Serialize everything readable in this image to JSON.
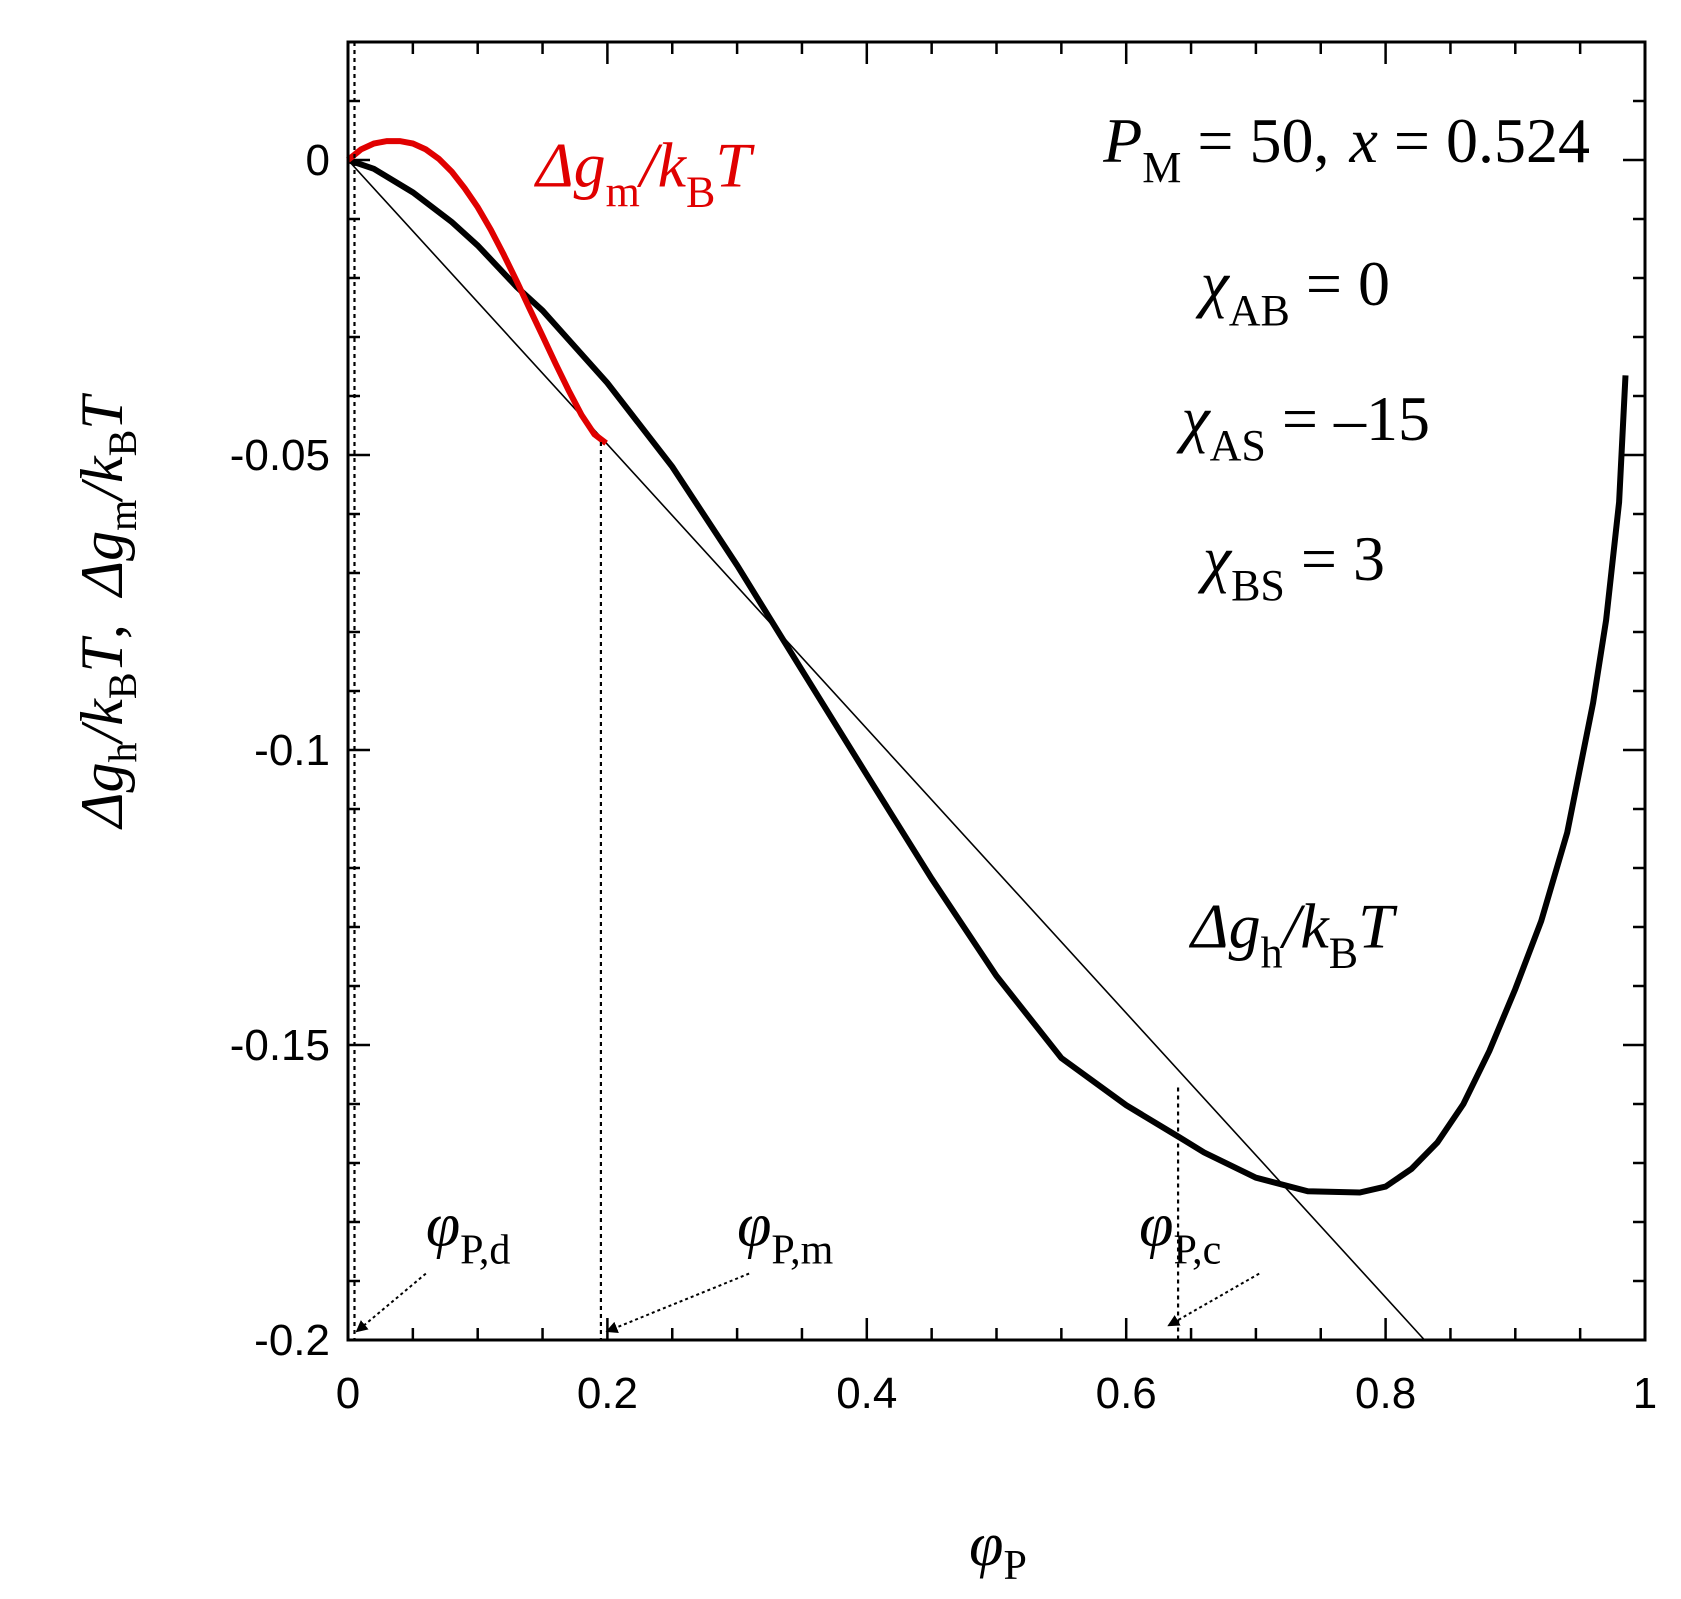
{
  "chart_data": {
    "type": "line",
    "xlabel": "φ",
    "xlabel_sub": "P",
    "ylabel": {
      "dgh": "Δg",
      "dgh_sub": "h",
      "sep1": "/",
      "k": "k",
      "k_sub": "B",
      "T": "T",
      "comma": ",",
      "dgm": "Δg",
      "dgm_sub": "m",
      "sep2": "/",
      "k2": "k",
      "k2_sub": "B",
      "T2": "T"
    },
    "xlim": [
      0,
      1
    ],
    "ylim": [
      -0.2,
      0.02
    ],
    "x_ticks": [
      0,
      0.2,
      0.4,
      0.6,
      0.8,
      1
    ],
    "x_tick_labels": [
      "0",
      "0.2",
      "0.4",
      "0.6",
      "0.8",
      "1"
    ],
    "y_ticks": [
      0,
      -0.05,
      -0.1,
      -0.15,
      -0.2
    ],
    "y_tick_labels": [
      "0",
      "-0.05",
      "-0.1",
      "-0.15",
      "-0.2"
    ],
    "colors": {
      "h_curve": "#000000",
      "m_curve": "#e00000",
      "axis": "#000000"
    },
    "series": [
      {
        "name": "Δg_h/k_BT",
        "x": [
          0,
          0.02,
          0.05,
          0.08,
          0.1,
          0.13,
          0.15,
          0.2,
          0.25,
          0.3,
          0.35,
          0.4,
          0.45,
          0.5,
          0.55,
          0.6,
          0.64,
          0.66,
          0.7,
          0.74,
          0.78,
          0.8,
          0.82,
          0.84,
          0.86,
          0.88,
          0.9,
          0.92,
          0.94,
          0.96,
          0.97,
          0.98,
          0.985
        ],
        "y": [
          0,
          -0.0015,
          -0.0055,
          -0.0105,
          -0.0145,
          -0.0215,
          -0.0255,
          -0.0378,
          -0.052,
          -0.0687,
          -0.0865,
          -0.1042,
          -0.1218,
          -0.1383,
          -0.1522,
          -0.1602,
          -0.1655,
          -0.1682,
          -0.1725,
          -0.1748,
          -0.175,
          -0.174,
          -0.171,
          -0.1665,
          -0.16,
          -0.151,
          -0.1405,
          -0.129,
          -0.114,
          -0.092,
          -0.078,
          -0.058,
          -0.0365
        ]
      },
      {
        "name": "Δg_m/k_BT",
        "x": [
          0,
          0.01,
          0.02,
          0.03,
          0.04,
          0.05,
          0.06,
          0.07,
          0.08,
          0.09,
          0.1,
          0.11,
          0.12,
          0.13,
          0.14,
          0.15,
          0.16,
          0.17,
          0.18,
          0.19,
          0.199
        ],
        "y": [
          0,
          0.0018,
          0.0028,
          0.0032,
          0.0032,
          0.0028,
          0.0018,
          0.0002,
          -0.002,
          -0.0048,
          -0.008,
          -0.0118,
          -0.016,
          -0.0205,
          -0.0252,
          -0.0298,
          -0.0345,
          -0.039,
          -0.0432,
          -0.0465,
          -0.048
        ]
      },
      {
        "name": "tangent",
        "x": [
          0,
          0.83
        ],
        "y": [
          0,
          -0.2
        ]
      }
    ],
    "vlines": [
      {
        "name": "phi-d",
        "x": 0.005,
        "y_top": 0.02
      },
      {
        "name": "phi-m",
        "x": 0.195,
        "y_top": -0.0478
      },
      {
        "name": "phi-c",
        "x": 0.64,
        "y_top": -0.1572
      }
    ],
    "annotations": {
      "phi_d": {
        "sym": "φ",
        "sub": "P,d",
        "x": 0.06,
        "y": -0.184,
        "arrow_to": [
          0.007,
          -0.1985
        ]
      },
      "phi_m": {
        "sym": "φ",
        "sub": "P,m",
        "x": 0.3,
        "y": -0.184,
        "arrow_to": [
          0.2,
          -0.1985
        ]
      },
      "phi_c": {
        "sym": "φ",
        "sub": "P,c",
        "x": 0.61,
        "y": -0.184,
        "arrow_to": [
          0.633,
          -0.1975
        ]
      },
      "curve_m_label": {
        "a": "Δg",
        "sub": "m",
        "sep": "/",
        "k": "k",
        "ksub": "B",
        "T": "T",
        "x": 0.145,
        "y": -0.0045
      },
      "curve_h_label": {
        "a": "Δg",
        "sub": "h",
        "sep": "/",
        "k": "k",
        "ksub": "B",
        "T": "T",
        "x": 0.65,
        "y": -0.1335
      },
      "params": {
        "P": "P",
        "P_sub": "M",
        "P_val": " = 50,",
        "x_sym": "x",
        "x_val": " = 0.524",
        "chi": "χ",
        "chiAB_sub": "AB",
        "chiAB_val": " = 0",
        "chiAS_sub": "AS",
        "chiAS_val": " = –15",
        "chiBS_sub": "BS",
        "chiBS_val": " = 3"
      }
    }
  }
}
